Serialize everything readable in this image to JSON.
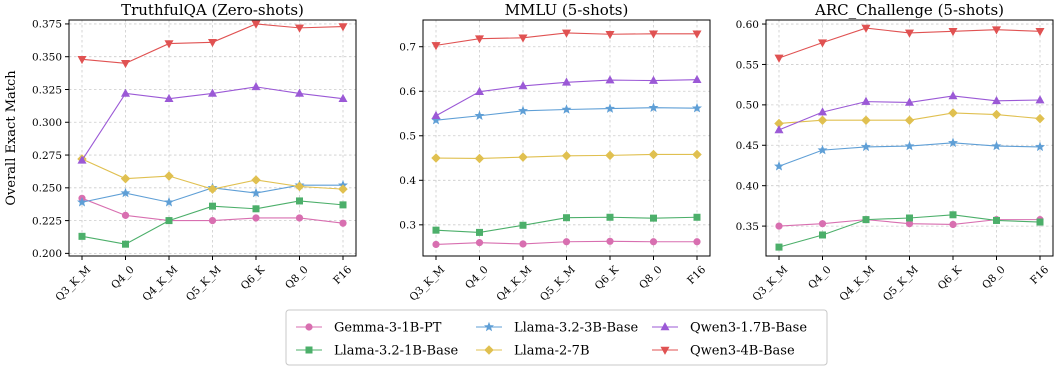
{
  "chart_data": [
    {
      "type": "line",
      "title": "TruthfulQA (Zero-shots)",
      "ylabel": "Overall Exact Match",
      "categories": [
        "Q3_K_M",
        "Q4_0",
        "Q4_K_M",
        "Q5_K_M",
        "Q6_K",
        "Q8_0",
        "F16"
      ],
      "ylim": [
        0.198,
        0.378
      ],
      "yticks": [
        "0.200",
        "0.225",
        "0.250",
        "0.275",
        "0.300",
        "0.325",
        "0.350",
        "0.375"
      ],
      "grid": true,
      "series": [
        {
          "name": "Gemma-3-1B-PT",
          "color": "#d86fb0",
          "marker": "circle",
          "values": [
            0.242,
            0.229,
            0.225,
            0.225,
            0.227,
            0.227,
            0.223
          ]
        },
        {
          "name": "Llama-3.2-1B-Base",
          "color": "#4caf6a",
          "marker": "square",
          "values": [
            0.213,
            0.207,
            0.225,
            0.236,
            0.234,
            0.24,
            0.237
          ]
        },
        {
          "name": "Llama-3.2-3B-Base",
          "color": "#5f9fd6",
          "marker": "star",
          "values": [
            0.239,
            0.246,
            0.239,
            0.25,
            0.246,
            0.252,
            0.252
          ]
        },
        {
          "name": "Llama-2-7B",
          "color": "#e0c050",
          "marker": "diamond",
          "values": [
            0.272,
            0.257,
            0.259,
            0.249,
            0.256,
            0.251,
            0.249
          ]
        },
        {
          "name": "Qwen3-1.7B-Base",
          "color": "#9b59d6",
          "marker": "triangle-up",
          "values": [
            0.271,
            0.322,
            0.318,
            0.322,
            0.327,
            0.322,
            0.318
          ]
        },
        {
          "name": "Qwen3-4B-Base",
          "color": "#e05252",
          "marker": "triangle-down",
          "values": [
            0.348,
            0.345,
            0.36,
            0.361,
            0.375,
            0.372,
            0.373
          ]
        }
      ]
    },
    {
      "type": "line",
      "title": "MMLU (5-shots)",
      "ylabel": "",
      "categories": [
        "Q3_K_M",
        "Q4_0",
        "Q4_K_M",
        "Q5_K_M",
        "Q6_K",
        "Q8_0",
        "F16"
      ],
      "ylim": [
        0.23,
        0.76
      ],
      "yticks": [
        "0.3",
        "0.4",
        "0.5",
        "0.6",
        "0.7"
      ],
      "grid": true,
      "series": [
        {
          "name": "Gemma-3-1B-PT",
          "color": "#d86fb0",
          "marker": "circle",
          "values": [
            0.256,
            0.26,
            0.257,
            0.262,
            0.263,
            0.262,
            0.262
          ]
        },
        {
          "name": "Llama-3.2-1B-Base",
          "color": "#4caf6a",
          "marker": "square",
          "values": [
            0.288,
            0.283,
            0.299,
            0.316,
            0.317,
            0.315,
            0.317
          ]
        },
        {
          "name": "Llama-3.2-3B-Base",
          "color": "#5f9fd6",
          "marker": "star",
          "values": [
            0.535,
            0.545,
            0.556,
            0.559,
            0.561,
            0.563,
            0.562
          ]
        },
        {
          "name": "Llama-2-7B",
          "color": "#e0c050",
          "marker": "diamond",
          "values": [
            0.45,
            0.449,
            0.452,
            0.455,
            0.456,
            0.458,
            0.458
          ]
        },
        {
          "name": "Qwen3-1.7B-Base",
          "color": "#9b59d6",
          "marker": "triangle-up",
          "values": [
            0.545,
            0.599,
            0.612,
            0.62,
            0.625,
            0.624,
            0.626
          ]
        },
        {
          "name": "Qwen3-4B-Base",
          "color": "#e05252",
          "marker": "triangle-down",
          "values": [
            0.703,
            0.718,
            0.72,
            0.731,
            0.728,
            0.729,
            0.729
          ]
        }
      ]
    },
    {
      "type": "line",
      "title": "ARC_Challenge (5-shots)",
      "ylabel": "",
      "categories": [
        "Q3_K_M",
        "Q4_0",
        "Q4_K_M",
        "Q5_K_M",
        "Q6_K",
        "Q8_0",
        "F16"
      ],
      "ylim": [
        0.313,
        0.605
      ],
      "yticks": [
        "0.35",
        "0.40",
        "0.45",
        "0.50",
        "0.55",
        "0.60"
      ],
      "grid": true,
      "series": [
        {
          "name": "Gemma-3-1B-PT",
          "color": "#d86fb0",
          "marker": "circle",
          "values": [
            0.35,
            0.353,
            0.358,
            0.353,
            0.352,
            0.358,
            0.358
          ]
        },
        {
          "name": "Llama-3.2-1B-Base",
          "color": "#4caf6a",
          "marker": "square",
          "values": [
            0.324,
            0.339,
            0.358,
            0.36,
            0.364,
            0.357,
            0.355
          ]
        },
        {
          "name": "Llama-3.2-3B-Base",
          "color": "#5f9fd6",
          "marker": "star",
          "values": [
            0.424,
            0.444,
            0.448,
            0.449,
            0.453,
            0.449,
            0.448
          ]
        },
        {
          "name": "Llama-2-7B",
          "color": "#e0c050",
          "marker": "diamond",
          "values": [
            0.477,
            0.481,
            0.481,
            0.481,
            0.49,
            0.488,
            0.483
          ]
        },
        {
          "name": "Qwen3-1.7B-Base",
          "color": "#9b59d6",
          "marker": "triangle-up",
          "values": [
            0.469,
            0.491,
            0.504,
            0.503,
            0.511,
            0.505,
            0.506
          ]
        },
        {
          "name": "Qwen3-4B-Base",
          "color": "#e05252",
          "marker": "triangle-down",
          "values": [
            0.558,
            0.577,
            0.595,
            0.589,
            0.591,
            0.593,
            0.591
          ]
        }
      ]
    }
  ],
  "legend": {
    "placement": "bottom-center",
    "columns": 3,
    "entries": [
      {
        "name": "Gemma-3-1B-PT",
        "color": "#d86fb0",
        "marker": "circle"
      },
      {
        "name": "Llama-3.2-1B-Base",
        "color": "#4caf6a",
        "marker": "square"
      },
      {
        "name": "Llama-3.2-3B-Base",
        "color": "#5f9fd6",
        "marker": "star"
      },
      {
        "name": "Llama-2-7B",
        "color": "#e0c050",
        "marker": "diamond"
      },
      {
        "name": "Qwen3-1.7B-Base",
        "color": "#9b59d6",
        "marker": "triangle-up"
      },
      {
        "name": "Qwen3-4B-Base",
        "color": "#e05252",
        "marker": "triangle-down"
      }
    ]
  }
}
